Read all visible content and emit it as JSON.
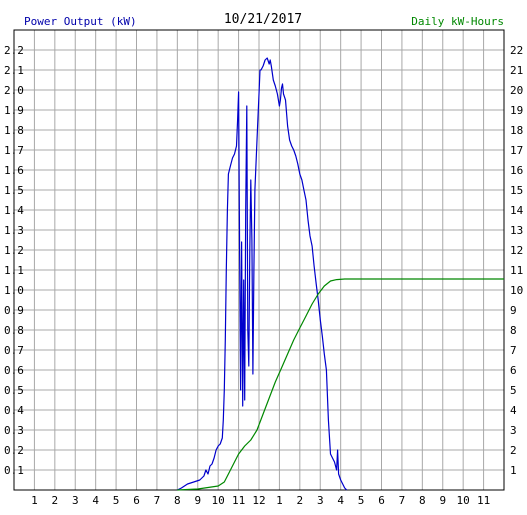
{
  "chart_data": {
    "type": "line",
    "title": "10/21/2017",
    "left_axis_label": "Power Output (kW)",
    "right_axis_label": "Daily kW-Hours",
    "colors": {
      "power": "#0000cc",
      "energy": "#008800",
      "grid": "#a8a8a8",
      "left_label": "#0000aa",
      "right_label": "#008800",
      "tick_text": "#000000"
    },
    "x_ticks": [
      "1",
      "2",
      "3",
      "4",
      "5",
      "6",
      "7",
      "8",
      "9",
      "10",
      "11",
      "12",
      "1",
      "2",
      "3",
      "4",
      "5",
      "6",
      "7",
      "8",
      "9",
      "10",
      "11"
    ],
    "x_range_hours": [
      0,
      24
    ],
    "y_left_range": [
      0,
      2.3
    ],
    "y_left_ticks": [
      "0.1",
      "0.2",
      "0.3",
      "0.4",
      "0.5",
      "0.6",
      "0.7",
      "0.8",
      "0.9",
      "1.0",
      "1.1",
      "1.2",
      "1.3",
      "1.4",
      "1.5",
      "1.6",
      "1.7",
      "1.8",
      "1.9",
      "2.0",
      "2.1",
      "2.2"
    ],
    "y_right_range": [
      0,
      23
    ],
    "y_right_ticks": [
      "1",
      "2",
      "3",
      "4",
      "5",
      "6",
      "7",
      "8",
      "9",
      "10",
      "11",
      "12",
      "13",
      "14",
      "15",
      "16",
      "17",
      "18",
      "19",
      "20",
      "21",
      "22"
    ],
    "grid": true,
    "series": [
      {
        "axis": "left",
        "points": [
          [
            8.0,
            0.0
          ],
          [
            8.2,
            0.01
          ],
          [
            8.5,
            0.03
          ],
          [
            8.8,
            0.04
          ],
          [
            9.1,
            0.05
          ],
          [
            9.3,
            0.07
          ],
          [
            9.4,
            0.1
          ],
          [
            9.5,
            0.08
          ],
          [
            9.6,
            0.12
          ],
          [
            9.7,
            0.13
          ],
          [
            9.8,
            0.16
          ],
          [
            9.9,
            0.2
          ],
          [
            10.0,
            0.22
          ],
          [
            10.1,
            0.23
          ],
          [
            10.2,
            0.26
          ],
          [
            10.25,
            0.35
          ],
          [
            10.3,
            0.5
          ],
          [
            10.35,
            0.75
          ],
          [
            10.4,
            1.1
          ],
          [
            10.45,
            1.4
          ],
          [
            10.5,
            1.58
          ],
          [
            10.6,
            1.62
          ],
          [
            10.7,
            1.66
          ],
          [
            10.8,
            1.68
          ],
          [
            10.9,
            1.72
          ],
          [
            10.95,
            1.85
          ],
          [
            11.0,
            1.99
          ],
          [
            11.05,
            1.2
          ],
          [
            11.1,
            0.5
          ],
          [
            11.15,
            1.24
          ],
          [
            11.2,
            0.42
          ],
          [
            11.25,
            1.05
          ],
          [
            11.3,
            0.45
          ],
          [
            11.35,
            1.4
          ],
          [
            11.4,
            1.92
          ],
          [
            11.45,
            0.8
          ],
          [
            11.5,
            0.62
          ],
          [
            11.55,
            1.2
          ],
          [
            11.6,
            1.55
          ],
          [
            11.65,
            1.25
          ],
          [
            11.7,
            0.58
          ],
          [
            11.75,
            1.1
          ],
          [
            11.8,
            1.5
          ],
          [
            11.9,
            1.75
          ],
          [
            12.0,
            1.98
          ],
          [
            12.05,
            2.1
          ],
          [
            12.1,
            2.1
          ],
          [
            12.2,
            2.12
          ],
          [
            12.3,
            2.15
          ],
          [
            12.4,
            2.16
          ],
          [
            12.5,
            2.13
          ],
          [
            12.55,
            2.15
          ],
          [
            12.6,
            2.12
          ],
          [
            12.7,
            2.05
          ],
          [
            12.8,
            2.02
          ],
          [
            12.9,
            1.98
          ],
          [
            13.0,
            1.92
          ],
          [
            13.05,
            1.95
          ],
          [
            13.1,
            2.01
          ],
          [
            13.15,
            2.03
          ],
          [
            13.2,
            1.98
          ],
          [
            13.3,
            1.95
          ],
          [
            13.4,
            1.82
          ],
          [
            13.5,
            1.75
          ],
          [
            13.6,
            1.72
          ],
          [
            13.7,
            1.7
          ],
          [
            13.8,
            1.67
          ],
          [
            13.9,
            1.63
          ],
          [
            14.0,
            1.58
          ],
          [
            14.1,
            1.55
          ],
          [
            14.2,
            1.5
          ],
          [
            14.3,
            1.45
          ],
          [
            14.4,
            1.35
          ],
          [
            14.5,
            1.27
          ],
          [
            14.6,
            1.22
          ],
          [
            14.7,
            1.12
          ],
          [
            14.8,
            1.03
          ],
          [
            14.9,
            0.95
          ],
          [
            15.0,
            0.85
          ],
          [
            15.1,
            0.77
          ],
          [
            15.2,
            0.68
          ],
          [
            15.3,
            0.6
          ],
          [
            15.4,
            0.35
          ],
          [
            15.5,
            0.18
          ],
          [
            15.6,
            0.16
          ],
          [
            15.7,
            0.14
          ],
          [
            15.8,
            0.1
          ],
          [
            15.85,
            0.2
          ],
          [
            15.9,
            0.08
          ],
          [
            16.0,
            0.05
          ],
          [
            16.1,
            0.03
          ],
          [
            16.2,
            0.01
          ],
          [
            16.3,
            0.0
          ]
        ]
      },
      {
        "axis": "right",
        "points": [
          [
            8.0,
            0.0
          ],
          [
            9.0,
            0.05
          ],
          [
            10.0,
            0.2
          ],
          [
            10.3,
            0.4
          ],
          [
            10.5,
            0.8
          ],
          [
            10.8,
            1.4
          ],
          [
            11.0,
            1.8
          ],
          [
            11.3,
            2.2
          ],
          [
            11.6,
            2.5
          ],
          [
            11.9,
            3.0
          ],
          [
            12.2,
            3.8
          ],
          [
            12.5,
            4.6
          ],
          [
            12.8,
            5.4
          ],
          [
            13.1,
            6.1
          ],
          [
            13.4,
            6.8
          ],
          [
            13.7,
            7.5
          ],
          [
            14.0,
            8.1
          ],
          [
            14.3,
            8.7
          ],
          [
            14.6,
            9.3
          ],
          [
            14.9,
            9.8
          ],
          [
            15.2,
            10.2
          ],
          [
            15.5,
            10.45
          ],
          [
            15.8,
            10.52
          ],
          [
            16.2,
            10.55
          ],
          [
            24.0,
            10.55
          ]
        ]
      }
    ]
  }
}
